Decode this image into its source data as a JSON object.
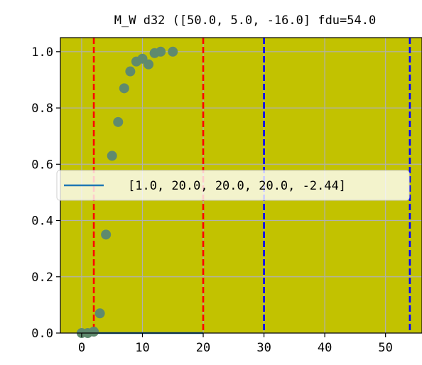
{
  "chart_data": {
    "type": "scatter",
    "title": "M_W d32 ([50.0, 5.0, -16.0] fdu=54.0",
    "xlabel": "",
    "ylabel": "",
    "xlim": [
      -3.5,
      56
    ],
    "ylim": [
      0.0,
      1.05
    ],
    "xticks": [
      0,
      10,
      20,
      30,
      40,
      50
    ],
    "yticks": [
      0.0,
      0.2,
      0.4,
      0.6,
      0.8,
      1.0
    ],
    "xtick_labels": [
      "0",
      "10",
      "20",
      "30",
      "40",
      "50"
    ],
    "ytick_labels": [
      "0.0",
      "0.2",
      "0.4",
      "0.6",
      "0.8",
      "1.0"
    ],
    "grid": true,
    "background_color": "#c2c200",
    "points": {
      "x": [
        0,
        1,
        2,
        3,
        4,
        5,
        6,
        7,
        8,
        9,
        10,
        11,
        12,
        13,
        15
      ],
      "y": [
        0.0,
        0.0,
        0.005,
        0.07,
        0.35,
        0.63,
        0.75,
        0.87,
        0.93,
        0.965,
        0.975,
        0.955,
        0.995,
        1.0,
        1.0
      ],
      "color": "#5f8a6e"
    },
    "line": {
      "x": [
        0,
        20
      ],
      "y": [
        0.0,
        0.0
      ],
      "color": "#1f77b4"
    },
    "vlines": [
      {
        "x": 2,
        "color": "#ff0000"
      },
      {
        "x": 20,
        "color": "#ff0000"
      },
      {
        "x": 30,
        "color": "#0000ff"
      },
      {
        "x": 54,
        "color": "#0000ff"
      }
    ],
    "legend": {
      "entries": [
        {
          "label": "[1.0, 20.0, 20.0, 20.0, -2.44]",
          "color": "#1f77b4"
        }
      ],
      "placement": "center-left"
    }
  }
}
